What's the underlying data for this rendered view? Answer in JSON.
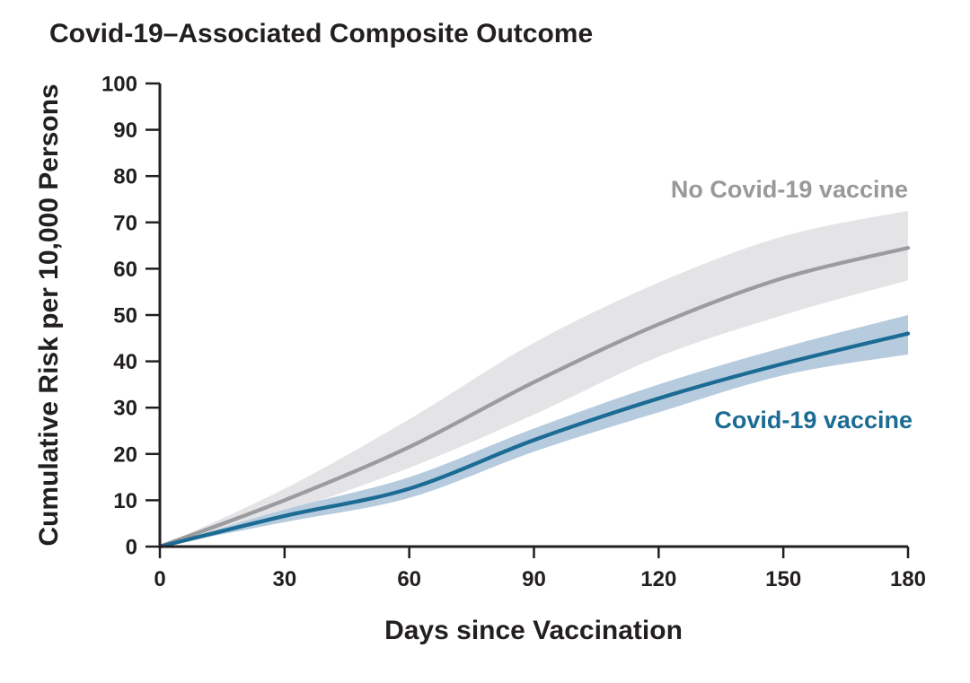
{
  "chart_data": {
    "type": "line",
    "title": "Covid-19–Associated Composite Outcome",
    "xlabel": "Days since Vaccination",
    "ylabel": "Cumulative Risk per 10,000 Persons",
    "x": [
      0,
      30,
      60,
      90,
      120,
      150,
      180
    ],
    "xlim": [
      0,
      180
    ],
    "ylim": [
      0,
      100
    ],
    "x_ticks": [
      0,
      30,
      60,
      90,
      120,
      150,
      180
    ],
    "y_ticks": [
      0,
      10,
      20,
      30,
      40,
      50,
      60,
      70,
      80,
      90,
      100
    ],
    "grid": false,
    "legend_position": "inline-right-of-curves",
    "axis_color": "#231f20",
    "series": [
      {
        "name": "no-covid19-vaccine",
        "label": "No Covid-19 vaccine",
        "color": "#9b9c9f",
        "band_color": "#e4e4e7",
        "label_color": "#97999b",
        "values": [
          0,
          10,
          21.5,
          35.5,
          48,
          58,
          64.5
        ],
        "lower": [
          0,
          7.5,
          17,
          28.5,
          41,
          50,
          57.5
        ],
        "upper": [
          0,
          12.5,
          27.5,
          44,
          57,
          67,
          72.5
        ]
      },
      {
        "name": "covid19-vaccine",
        "label": "Covid-19 vaccine",
        "color": "#1b6b94",
        "band_color": "#b6cbdd",
        "label_color": "#1b6b94",
        "values": [
          0,
          6.6,
          12.5,
          23,
          32,
          39.5,
          46
        ],
        "lower": [
          0,
          5.3,
          10.5,
          20.5,
          29,
          37,
          41.5
        ],
        "upper": [
          0,
          8,
          15,
          25.5,
          35,
          43,
          50
        ]
      }
    ]
  }
}
